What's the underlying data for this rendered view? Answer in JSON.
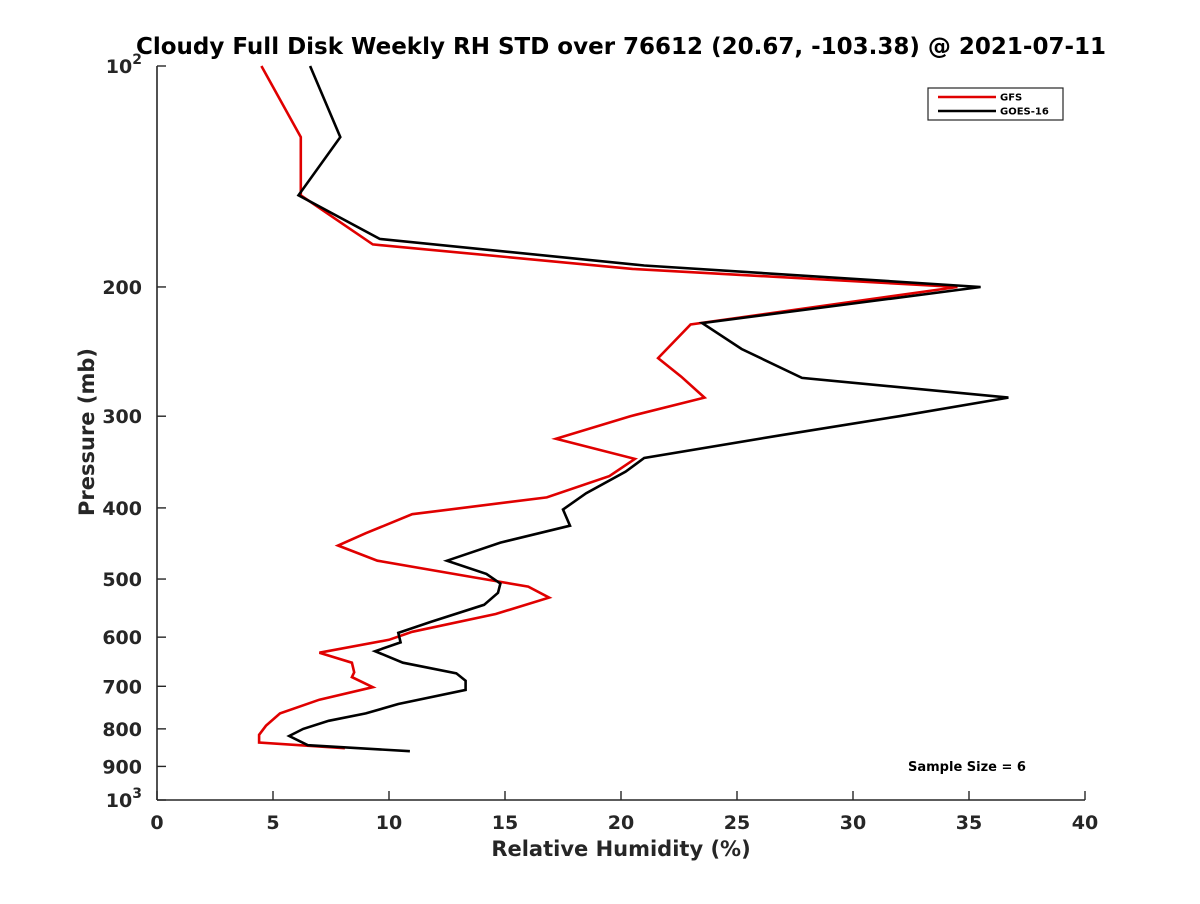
{
  "chart_data": {
    "type": "line",
    "title": "Cloudy Full Disk Weekly RH STD over 76612 (20.67, -103.38) @ 2021-07-11",
    "xlabel": "Relative Humidity (%)",
    "ylabel": "Pressure (mb)",
    "xlim": [
      0,
      40
    ],
    "ylim": [
      100,
      1000
    ],
    "yscale": "log",
    "y_reversed": true,
    "x_ticks": [
      0,
      5,
      10,
      15,
      20,
      25,
      30,
      35,
      40
    ],
    "x_tick_labels": [
      "0",
      "5",
      "10",
      "15",
      "20",
      "25",
      "30",
      "35",
      "40"
    ],
    "y_ticks": [
      100,
      200,
      300,
      400,
      500,
      600,
      700,
      800,
      900,
      1000
    ],
    "y_tick_labels": [
      {
        "base": "10",
        "exp": "2"
      },
      {
        "base": "200",
        "exp": ""
      },
      {
        "base": "300",
        "exp": ""
      },
      {
        "base": "400",
        "exp": ""
      },
      {
        "base": "500",
        "exp": ""
      },
      {
        "base": "600",
        "exp": ""
      },
      {
        "base": "700",
        "exp": ""
      },
      {
        "base": "800",
        "exp": ""
      },
      {
        "base": "900",
        "exp": ""
      },
      {
        "base": "10",
        "exp": "3"
      }
    ],
    "grid": false,
    "legend_position": "top-right",
    "annotation": "Sample Size = 6",
    "series": [
      {
        "name": "GFS",
        "color": "#e00000",
        "points": [
          [
            4.5,
            100
          ],
          [
            6.2,
            125
          ],
          [
            6.2,
            150
          ],
          [
            9.3,
            175
          ],
          [
            20.5,
            189
          ],
          [
            34.5,
            200
          ],
          [
            23.0,
            225
          ],
          [
            21.6,
            250
          ],
          [
            22.6,
            265
          ],
          [
            23.6,
            283
          ],
          [
            20.4,
            300
          ],
          [
            17.2,
            322
          ],
          [
            20.6,
            343
          ],
          [
            19.5,
            362
          ],
          [
            16.8,
            387
          ],
          [
            11.0,
            408
          ],
          [
            9.0,
            433
          ],
          [
            7.8,
            450
          ],
          [
            9.5,
            472
          ],
          [
            13.6,
            497
          ],
          [
            16.0,
            512
          ],
          [
            16.9,
            530
          ],
          [
            14.6,
            558
          ],
          [
            11.0,
            590
          ],
          [
            10.0,
            605
          ],
          [
            7.0,
            630
          ],
          [
            8.4,
            650
          ],
          [
            8.5,
            670
          ],
          [
            8.4,
            680
          ],
          [
            9.3,
            702
          ],
          [
            7.0,
            730
          ],
          [
            5.3,
            762
          ],
          [
            4.7,
            792
          ],
          [
            4.4,
            815
          ],
          [
            4.4,
            835
          ],
          [
            8.1,
            850
          ]
        ]
      },
      {
        "name": "GOES-16",
        "color": "#000000",
        "points": [
          [
            6.6,
            100
          ],
          [
            7.9,
            125
          ],
          [
            6.1,
            150
          ],
          [
            9.6,
            172
          ],
          [
            21.0,
            187
          ],
          [
            35.5,
            200
          ],
          [
            23.5,
            224
          ],
          [
            25.2,
            243
          ],
          [
            27.8,
            266
          ],
          [
            36.7,
            283
          ],
          [
            32.0,
            300
          ],
          [
            27.0,
            318
          ],
          [
            21.0,
            342
          ],
          [
            20.2,
            357
          ],
          [
            18.5,
            382
          ],
          [
            17.5,
            402
          ],
          [
            17.8,
            423
          ],
          [
            14.8,
            446
          ],
          [
            12.5,
            472
          ],
          [
            14.2,
            492
          ],
          [
            14.8,
            507
          ],
          [
            14.7,
            522
          ],
          [
            14.1,
            542
          ],
          [
            11.8,
            572
          ],
          [
            10.4,
            592
          ],
          [
            10.5,
            610
          ],
          [
            9.4,
            627
          ],
          [
            10.6,
            650
          ],
          [
            12.9,
            672
          ],
          [
            13.3,
            688
          ],
          [
            13.3,
            708
          ],
          [
            10.4,
            740
          ],
          [
            9.0,
            762
          ],
          [
            7.4,
            780
          ],
          [
            6.3,
            800
          ],
          [
            5.7,
            818
          ],
          [
            6.5,
            842
          ],
          [
            10.9,
            858
          ]
        ]
      }
    ]
  }
}
